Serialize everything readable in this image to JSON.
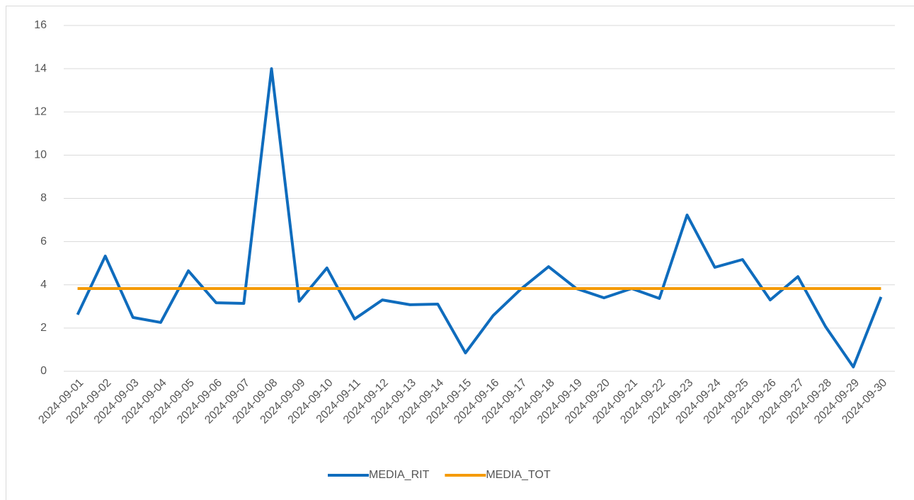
{
  "chart_data": {
    "type": "line",
    "categories": [
      "2024-09-01",
      "2024-09-02",
      "2024-09-03",
      "2024-09-04",
      "2024-09-05",
      "2024-09-06",
      "2024-09-07",
      "2024-09-08",
      "2024-09-09",
      "2024-09-10",
      "2024-09-11",
      "2024-09-12",
      "2024-09-13",
      "2024-09-14",
      "2024-09-15",
      "2024-09-16",
      "2024-09-17",
      "2024-09-18",
      "2024-09-19",
      "2024-09-20",
      "2024-09-21",
      "2024-09-22",
      "2024-09-23",
      "2024-09-24",
      "2024-09-25",
      "2024-09-26",
      "2024-09-27",
      "2024-09-28",
      "2024-09-29",
      "2024-09-30"
    ],
    "series": [
      {
        "name": "MEDIA_RIT",
        "color": "#0f6cbd",
        "values": [
          2.62,
          5.33,
          2.49,
          2.26,
          4.65,
          3.17,
          3.14,
          14.0,
          3.24,
          4.78,
          2.42,
          3.3,
          3.08,
          3.11,
          0.85,
          2.58,
          3.8,
          4.84,
          3.83,
          3.4,
          3.83,
          3.37,
          7.23,
          4.81,
          5.17,
          3.3,
          4.38,
          2.06,
          0.2,
          3.44
        ]
      },
      {
        "name": "MEDIA_TOT",
        "color": "#f59a00",
        "values": [
          3.83,
          3.83,
          3.83,
          3.83,
          3.83,
          3.83,
          3.83,
          3.83,
          3.83,
          3.83,
          3.83,
          3.83,
          3.83,
          3.83,
          3.83,
          3.83,
          3.83,
          3.83,
          3.83,
          3.83,
          3.83,
          3.83,
          3.83,
          3.83,
          3.83,
          3.83,
          3.83,
          3.83,
          3.83,
          3.83
        ]
      }
    ],
    "ylim": [
      0,
      16
    ],
    "yticks": [
      0,
      2,
      4,
      6,
      8,
      10,
      12,
      14,
      16
    ],
    "grid": true,
    "legend": "bottom"
  }
}
